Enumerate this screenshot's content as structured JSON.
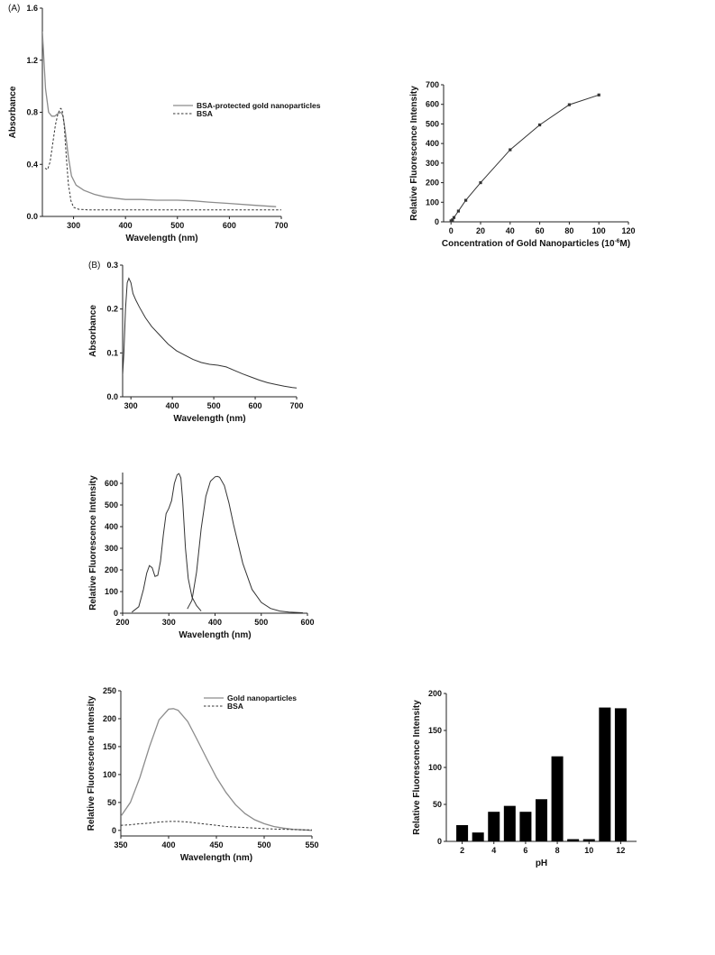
{
  "chart_data": [
    {
      "id": "chartA",
      "type": "line",
      "panel_label": "(A)",
      "xlabel": "Wavelength (nm)",
      "ylabel": "Absorbance",
      "xlim": [
        240,
        700
      ],
      "ylim": [
        0,
        1.6
      ],
      "xticks": [
        300,
        400,
        500,
        600,
        700
      ],
      "yticks": [
        0.0,
        0.4,
        0.8,
        1.2,
        1.6
      ],
      "ytick_labels": [
        "0.0",
        "0.4",
        "0.8",
        "1.2",
        "1.6"
      ],
      "legend_position": "top-right",
      "series": [
        {
          "name": "BSA-protected gold nanoparticles",
          "color": "#8c8c8c",
          "dash": "solid",
          "x": [
            240,
            246,
            252,
            258,
            264,
            270,
            276,
            280,
            284,
            290,
            296,
            305,
            320,
            340,
            360,
            380,
            400,
            430,
            460,
            500,
            530,
            560,
            600,
            650,
            690
          ],
          "y": [
            1.42,
            0.98,
            0.8,
            0.77,
            0.77,
            0.79,
            0.8,
            0.77,
            0.66,
            0.46,
            0.31,
            0.24,
            0.2,
            0.17,
            0.15,
            0.14,
            0.13,
            0.13,
            0.125,
            0.125,
            0.12,
            0.11,
            0.1,
            0.085,
            0.075
          ]
        },
        {
          "name": "BSA",
          "color": "#333333",
          "dash": "dashed",
          "x": [
            245,
            250,
            255,
            260,
            265,
            270,
            275,
            278,
            282,
            286,
            290,
            295,
            300,
            310,
            330,
            400,
            500,
            600,
            700
          ],
          "y": [
            0.37,
            0.36,
            0.42,
            0.56,
            0.7,
            0.79,
            0.83,
            0.82,
            0.7,
            0.46,
            0.25,
            0.12,
            0.07,
            0.055,
            0.05,
            0.05,
            0.05,
            0.05,
            0.05
          ]
        }
      ]
    },
    {
      "id": "chartRight1",
      "type": "line",
      "xlabel": "Concentration of Gold Nanoparticles (10",
      "xlabel_sup": "-6",
      "xlabel_suffix": "M)",
      "ylabel": "Relative Fluorescence Intensity",
      "xlim": [
        -5,
        120
      ],
      "ylim": [
        0,
        700
      ],
      "xticks": [
        0,
        20,
        40,
        60,
        80,
        100,
        120
      ],
      "yticks": [
        0,
        100,
        200,
        300,
        400,
        500,
        600,
        700
      ],
      "series": [
        {
          "name": "",
          "color": "#333333",
          "markers": true,
          "x": [
            0,
            1,
            2,
            5,
            10,
            20,
            40,
            60,
            80,
            100
          ],
          "y": [
            5,
            10,
            22,
            55,
            110,
            200,
            368,
            495,
            598,
            648
          ]
        }
      ]
    },
    {
      "id": "chartB",
      "type": "line",
      "panel_label": "(B)",
      "xlabel": "Wavelength (nm)",
      "ylabel": "Absorbance",
      "xlim": [
        280,
        700
      ],
      "ylim": [
        0,
        0.3
      ],
      "xticks": [
        300,
        400,
        500,
        600,
        700
      ],
      "yticks": [
        0.0,
        0.1,
        0.2,
        0.3
      ],
      "ytick_labels": [
        "0.0",
        "0.1",
        "0.2",
        "0.3"
      ],
      "series": [
        {
          "name": "",
          "color": "#333333",
          "x": [
            280,
            283,
            287,
            291,
            295,
            300,
            305,
            312,
            320,
            335,
            350,
            370,
            390,
            410,
            430,
            450,
            470,
            490,
            510,
            530,
            550,
            570,
            590,
            610,
            630,
            650,
            670,
            690,
            700
          ],
          "y": [
            0.05,
            0.1,
            0.2,
            0.26,
            0.27,
            0.26,
            0.235,
            0.22,
            0.205,
            0.18,
            0.16,
            0.14,
            0.12,
            0.105,
            0.095,
            0.085,
            0.078,
            0.074,
            0.072,
            0.068,
            0.06,
            0.052,
            0.045,
            0.038,
            0.032,
            0.028,
            0.024,
            0.021,
            0.02
          ]
        }
      ]
    },
    {
      "id": "chartC",
      "type": "line",
      "xlabel": "Wavelength (nm)",
      "ylabel": "Relative Fluorescence Intensity",
      "xlim": [
        200,
        600
      ],
      "ylim": [
        0,
        650
      ],
      "xticks": [
        200,
        300,
        400,
        500,
        600
      ],
      "yticks": [
        0,
        100,
        200,
        300,
        400,
        500,
        600
      ],
      "series": [
        {
          "name": "",
          "color": "#333333",
          "x": [
            220,
            235,
            245,
            252,
            258,
            264,
            270,
            276,
            282,
            288,
            294,
            300,
            306,
            312,
            318,
            322,
            326,
            330,
            336,
            342,
            350,
            360,
            370
          ],
          "y": [
            5,
            30,
            110,
            185,
            220,
            210,
            170,
            175,
            240,
            360,
            460,
            485,
            520,
            600,
            640,
            645,
            625,
            520,
            300,
            160,
            75,
            35,
            10
          ]
        },
        {
          "name": "",
          "color": "#333333",
          "x": [
            340,
            350,
            360,
            370,
            380,
            390,
            400,
            405,
            410,
            420,
            430,
            440,
            460,
            480,
            500,
            520,
            540,
            560,
            590
          ],
          "y": [
            20,
            60,
            190,
            390,
            540,
            610,
            630,
            632,
            628,
            590,
            510,
            410,
            230,
            110,
            50,
            22,
            10,
            5,
            2
          ]
        }
      ]
    },
    {
      "id": "chartD",
      "type": "line",
      "xlabel": "Wavelength (nm)",
      "ylabel": "Relative Fluorescence Intensity",
      "xlim": [
        350,
        550
      ],
      "ylim": [
        -10,
        250
      ],
      "xticks": [
        350,
        400,
        450,
        500,
        550
      ],
      "yticks": [
        0,
        50,
        100,
        150,
        200,
        250
      ],
      "legend_position": "top-right",
      "series": [
        {
          "name": "Gold nanoparticles",
          "color": "#8c8c8c",
          "dash": "solid",
          "x": [
            350,
            360,
            370,
            380,
            390,
            400,
            405,
            410,
            420,
            430,
            440,
            450,
            460,
            470,
            480,
            490,
            500,
            510,
            520,
            530,
            540,
            550
          ],
          "y": [
            25,
            50,
            95,
            150,
            198,
            217,
            218,
            215,
            195,
            162,
            128,
            95,
            68,
            46,
            30,
            19,
            12,
            7,
            4,
            2,
            1,
            0
          ]
        },
        {
          "name": "BSA",
          "color": "#333333",
          "dash": "dashed",
          "x": [
            350,
            360,
            370,
            380,
            390,
            400,
            410,
            420,
            430,
            440,
            450,
            460,
            470,
            480,
            490,
            500,
            510,
            520,
            530,
            540,
            550
          ],
          "y": [
            9,
            10,
            12,
            13,
            15,
            16,
            16,
            15,
            13,
            11,
            9,
            7,
            6,
            5,
            4,
            3,
            2.5,
            2,
            1.5,
            1,
            1
          ]
        }
      ]
    },
    {
      "id": "chartE",
      "type": "bar",
      "xlabel": "pH",
      "ylabel": "Relative Fluorescence Intensity",
      "xlim": [
        1,
        13
      ],
      "ylim": [
        0,
        200
      ],
      "xticks": [
        2,
        4,
        6,
        8,
        10,
        12
      ],
      "yticks": [
        0,
        50,
        100,
        150,
        200
      ],
      "bar_color": "#000000",
      "categories": [
        2,
        3,
        4,
        5,
        6,
        7,
        8,
        9,
        10,
        11,
        12
      ],
      "values": [
        22,
        12,
        40,
        48,
        40,
        57,
        115,
        3,
        3,
        181,
        180
      ]
    }
  ]
}
